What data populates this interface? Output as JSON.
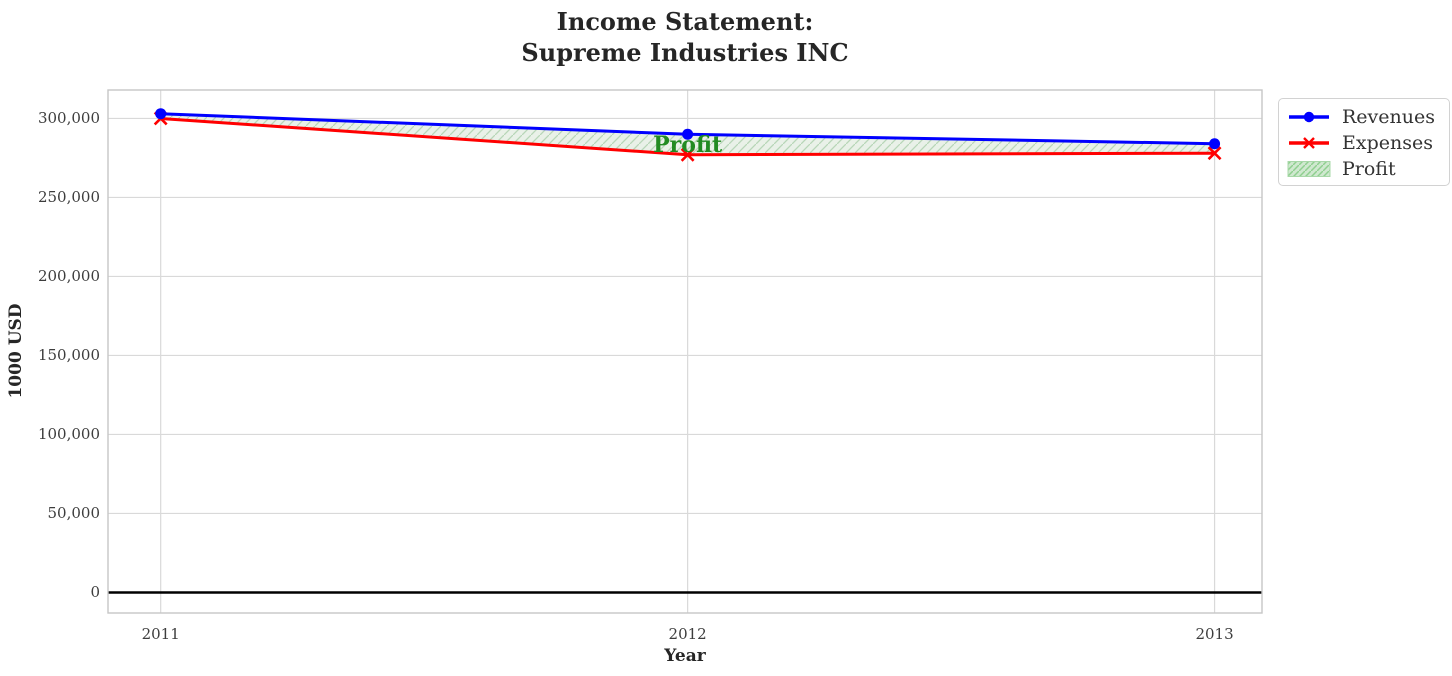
{
  "title": {
    "line1": "Income Statement:",
    "line2": "Supreme Industries INC"
  },
  "chart_data": {
    "type": "line",
    "title": "Income Statement: Supreme Industries INC",
    "x": [
      2011,
      2012,
      2013
    ],
    "series": [
      {
        "name": "Revenues",
        "values": [
          303000,
          290000,
          284000
        ],
        "color": "#0000ff",
        "marker": "circle"
      },
      {
        "name": "Expenses",
        "values": [
          300000,
          277000,
          278000
        ],
        "color": "#ff0000",
        "marker": "x"
      }
    ],
    "fill_between": {
      "name": "Profit",
      "between": [
        "Revenues",
        "Expenses"
      ],
      "facecolor": "#e9f1e8",
      "hatch": "///",
      "hatch_color": "#b7d6b7"
    },
    "annotations": [
      {
        "text": "Profit",
        "x": 2012,
        "y": 283000,
        "color": "#228B22"
      }
    ],
    "xlabel": "Year",
    "ylabel": "1000 USD",
    "xlim": [
      2010.9,
      2013.09
    ],
    "ylim": [
      -13000,
      318000
    ],
    "xticks": [
      2011,
      2012,
      2013
    ],
    "yticks": [
      0,
      50000,
      100000,
      150000,
      200000,
      250000,
      300000
    ],
    "ytick_labels": [
      "0",
      "50,000",
      "100,000",
      "150,000",
      "200,000",
      "250,000",
      "300,000"
    ],
    "grid": true,
    "zero_line": {
      "y": 0,
      "color": "#000000"
    },
    "legend": {
      "position": "upper right outside",
      "items": [
        {
          "label": "Revenues"
        },
        {
          "label": "Expenses"
        },
        {
          "label": "Profit"
        }
      ]
    },
    "colors": {
      "grid": "#d9d9d9",
      "spine": "#c6c6c6",
      "tick_text": "#3d3d3d",
      "title_text": "#262626",
      "legend_swatch_fill": "#cfe8cf",
      "legend_swatch_hatch": "#8fcf8f",
      "legend_swatch_edge": "#a8d8a8"
    }
  }
}
